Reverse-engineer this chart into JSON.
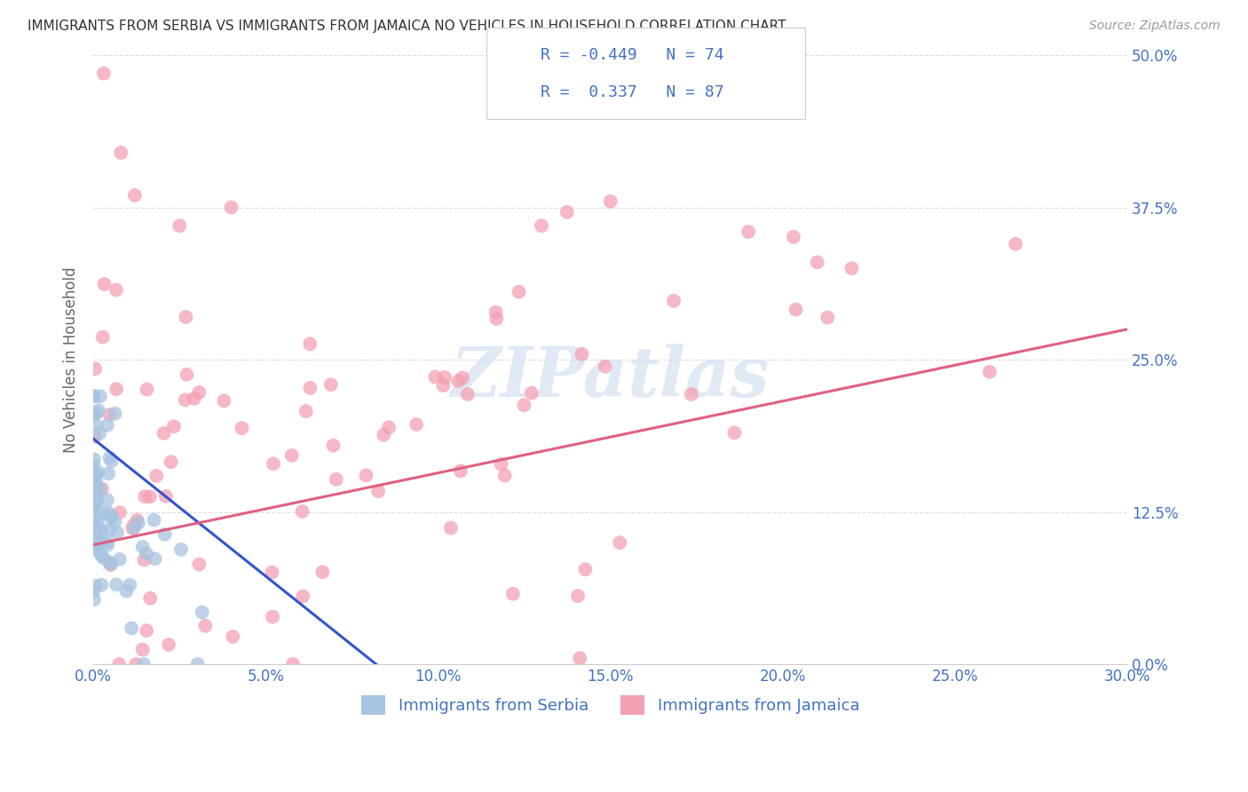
{
  "title": "IMMIGRANTS FROM SERBIA VS IMMIGRANTS FROM JAMAICA NO VEHICLES IN HOUSEHOLD CORRELATION CHART",
  "source": "Source: ZipAtlas.com",
  "ylabel": "No Vehicles in Household",
  "xlim": [
    0.0,
    0.3
  ],
  "ylim": [
    0.0,
    0.5
  ],
  "serbia_color": "#a8c4e0",
  "jamaica_color": "#f4a0b4",
  "serbia_line_color": "#3355cc",
  "jamaica_line_color": "#e06080",
  "serbia_R": -0.449,
  "serbia_N": 74,
  "jamaica_R": 0.337,
  "jamaica_N": 87,
  "serbia_line_x0": 0.0,
  "serbia_line_y0": 0.185,
  "serbia_line_x1": 0.082,
  "serbia_line_y1": 0.0,
  "jamaica_line_x0": 0.0,
  "jamaica_line_y0": 0.098,
  "jamaica_line_x1": 0.3,
  "jamaica_line_y1": 0.275,
  "watermark_text": "ZIPatlas",
  "bg_color": "#ffffff",
  "grid_color": "#dddddd",
  "title_color": "#333333",
  "axis_label_color": "#4472c4",
  "source_color": "#999999"
}
